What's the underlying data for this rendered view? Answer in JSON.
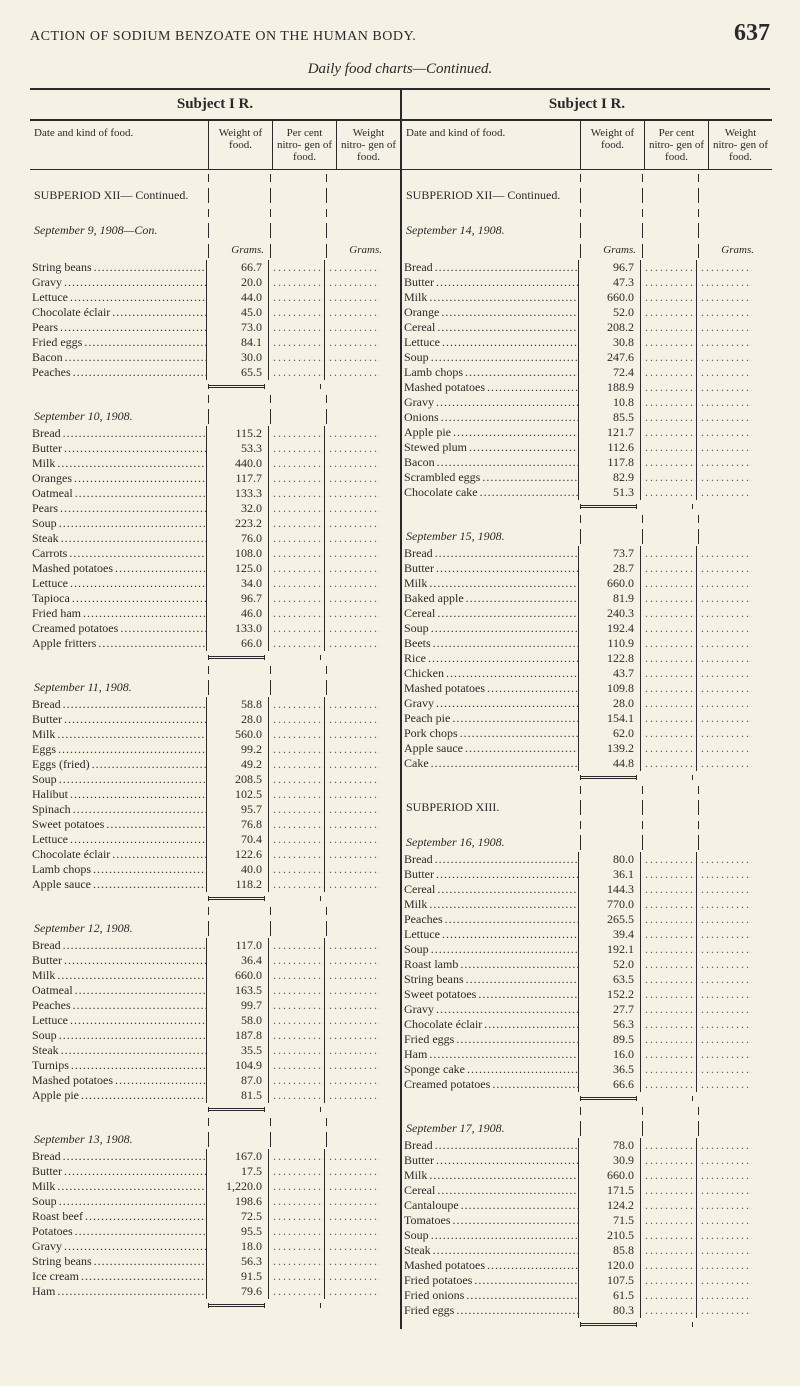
{
  "page": {
    "running_title": "ACTION OF SODIUM BENZOATE ON THE HUMAN BODY.",
    "number": "637",
    "subtitle": "Daily food charts—Continued."
  },
  "columns": {
    "left": {
      "subject": "Subject I R."
    },
    "right": {
      "subject": "Subject I R."
    }
  },
  "headers": {
    "item": "Date and kind of food.",
    "weight": "Weight of food.",
    "percent": "Per cent nitro- gen of food.",
    "nweight": "Weight nitro- gen of food."
  },
  "units": {
    "grams": "Grams."
  },
  "left_sections": [
    {
      "title": "SUBPERIOD XII— Continued.",
      "bold": true
    },
    {
      "title": "September 9, 1908—Con.",
      "italic": true,
      "rows": [
        [
          "String beans",
          "66.7"
        ],
        [
          "Gravy",
          "20.0"
        ],
        [
          "Lettuce",
          "44.0"
        ],
        [
          "Chocolate éclair",
          "45.0"
        ],
        [
          "Pears",
          "73.0"
        ],
        [
          "Fried eggs",
          "84.1"
        ],
        [
          "Bacon",
          "30.0"
        ],
        [
          "Peaches",
          "65.5"
        ]
      ]
    },
    {
      "title": "September 10, 1908.",
      "italic": true,
      "rows": [
        [
          "Bread",
          "115.2"
        ],
        [
          "Butter",
          "53.3"
        ],
        [
          "Milk",
          "440.0"
        ],
        [
          "Oranges",
          "117.7"
        ],
        [
          "Oatmeal",
          "133.3"
        ],
        [
          "Pears",
          "32.0"
        ],
        [
          "Soup",
          "223.2"
        ],
        [
          "Steak",
          "76.0"
        ],
        [
          "Carrots",
          "108.0"
        ],
        [
          "Mashed potatoes",
          "125.0"
        ],
        [
          "Lettuce",
          "34.0"
        ],
        [
          "Tapioca",
          "96.7"
        ],
        [
          "Fried ham",
          "46.0"
        ],
        [
          "Creamed potatoes",
          "133.0"
        ],
        [
          "Apple fritters",
          "66.0"
        ]
      ]
    },
    {
      "title": "September 11, 1908.",
      "italic": true,
      "rows": [
        [
          "Bread",
          "58.8"
        ],
        [
          "Butter",
          "28.0"
        ],
        [
          "Milk",
          "560.0"
        ],
        [
          "Eggs",
          "99.2"
        ],
        [
          "Eggs (fried)",
          "49.2"
        ],
        [
          "Soup",
          "208.5"
        ],
        [
          "Halibut",
          "102.5"
        ],
        [
          "Spinach",
          "95.7"
        ],
        [
          "Sweet potatoes",
          "76.8"
        ],
        [
          "Lettuce",
          "70.4"
        ],
        [
          "Chocolate éclair",
          "122.6"
        ],
        [
          "Lamb chops",
          "40.0"
        ],
        [
          "Apple sauce",
          "118.2"
        ]
      ]
    },
    {
      "title": "September 12, 1908.",
      "italic": true,
      "rows": [
        [
          "Bread",
          "117.0"
        ],
        [
          "Butter",
          "36.4"
        ],
        [
          "Milk",
          "660.0"
        ],
        [
          "Oatmeal",
          "163.5"
        ],
        [
          "Peaches",
          "99.7"
        ],
        [
          "Lettuce",
          "58.0"
        ],
        [
          "Soup",
          "187.8"
        ],
        [
          "Steak",
          "35.5"
        ],
        [
          "Turnips",
          "104.9"
        ],
        [
          "Mashed potatoes",
          "87.0"
        ],
        [
          "Apple pie",
          "81.5"
        ]
      ]
    },
    {
      "title": "September 13, 1908.",
      "italic": true,
      "rows": [
        [
          "Bread",
          "167.0"
        ],
        [
          "Butter",
          "17.5"
        ],
        [
          "Milk",
          "1,220.0"
        ],
        [
          "Soup",
          "198.6"
        ],
        [
          "Roast beef",
          "72.5"
        ],
        [
          "Potatoes",
          "95.5"
        ],
        [
          "Gravy",
          "18.0"
        ],
        [
          "String beans",
          "56.3"
        ],
        [
          "Ice cream",
          "91.5"
        ],
        [
          "Ham",
          "79.6"
        ]
      ]
    }
  ],
  "right_sections": [
    {
      "title": "SUBPERIOD XII— Continued.",
      "bold": true
    },
    {
      "title": "September 14, 1908.",
      "italic": true,
      "rows": [
        [
          "Bread",
          "96.7"
        ],
        [
          "Butter",
          "47.3"
        ],
        [
          "Milk",
          "660.0"
        ],
        [
          "Orange",
          "52.0"
        ],
        [
          "Cereal",
          "208.2"
        ],
        [
          "Lettuce",
          "30.8"
        ],
        [
          "Soup",
          "247.6"
        ],
        [
          "Lamb chops",
          "72.4"
        ],
        [
          "Mashed potatoes",
          "188.9"
        ],
        [
          "Gravy",
          "10.8"
        ],
        [
          "Onions",
          "85.5"
        ],
        [
          "Apple pie",
          "121.7"
        ],
        [
          "Stewed plum",
          "112.6"
        ],
        [
          "Bacon",
          "117.8"
        ],
        [
          "Scrambled eggs",
          "82.9"
        ],
        [
          "Chocolate cake",
          "51.3"
        ]
      ]
    },
    {
      "title": "September 15, 1908.",
      "italic": true,
      "rows": [
        [
          "Bread",
          "73.7"
        ],
        [
          "Butter",
          "28.7"
        ],
        [
          "Milk",
          "660.0"
        ],
        [
          "Baked apple",
          "81.9"
        ],
        [
          "Cereal",
          "240.3"
        ],
        [
          "Soup",
          "192.4"
        ],
        [
          "Beets",
          "110.9"
        ],
        [
          "Rice",
          "122.8"
        ],
        [
          "Chicken",
          "43.7"
        ],
        [
          "Mashed potatoes",
          "109.8"
        ],
        [
          "Gravy",
          "28.0"
        ],
        [
          "Peach pie",
          "154.1"
        ],
        [
          "Pork chops",
          "62.0"
        ],
        [
          "Apple sauce",
          "139.2"
        ],
        [
          "Cake",
          "44.8"
        ]
      ]
    },
    {
      "title": "SUBPERIOD XIII.",
      "bold": true
    },
    {
      "title": "September 16, 1908.",
      "italic": true,
      "rows": [
        [
          "Bread",
          "80.0"
        ],
        [
          "Butter",
          "36.1"
        ],
        [
          "Cereal",
          "144.3"
        ],
        [
          "Milk",
          "770.0"
        ],
        [
          "Peaches",
          "265.5"
        ],
        [
          "Lettuce",
          "39.4"
        ],
        [
          "Soup",
          "192.1"
        ],
        [
          "Roast lamb",
          "52.0"
        ],
        [
          "String beans",
          "63.5"
        ],
        [
          "Sweet potatoes",
          "152.2"
        ],
        [
          "Gravy",
          "27.7"
        ],
        [
          "Chocolate éclair",
          "56.3"
        ],
        [
          "Fried eggs",
          "89.5"
        ],
        [
          "Ham",
          "16.0"
        ],
        [
          "Sponge cake",
          "36.5"
        ],
        [
          "Creamed potatoes",
          "66.6"
        ]
      ]
    },
    {
      "title": "September 17, 1908.",
      "italic": true,
      "rows": [
        [
          "Bread",
          "78.0"
        ],
        [
          "Butter",
          "30.9"
        ],
        [
          "Milk",
          "660.0"
        ],
        [
          "Cereal",
          "171.5"
        ],
        [
          "Cantaloupe",
          "124.2"
        ],
        [
          "Tomatoes",
          "71.5"
        ],
        [
          "Soup",
          "210.5"
        ],
        [
          "Steak",
          "85.8"
        ],
        [
          "Mashed potatoes",
          "120.0"
        ],
        [
          "Fried potatoes",
          "107.5"
        ],
        [
          "Fried onions",
          "61.5"
        ],
        [
          "Fried eggs",
          "80.3"
        ]
      ]
    }
  ]
}
